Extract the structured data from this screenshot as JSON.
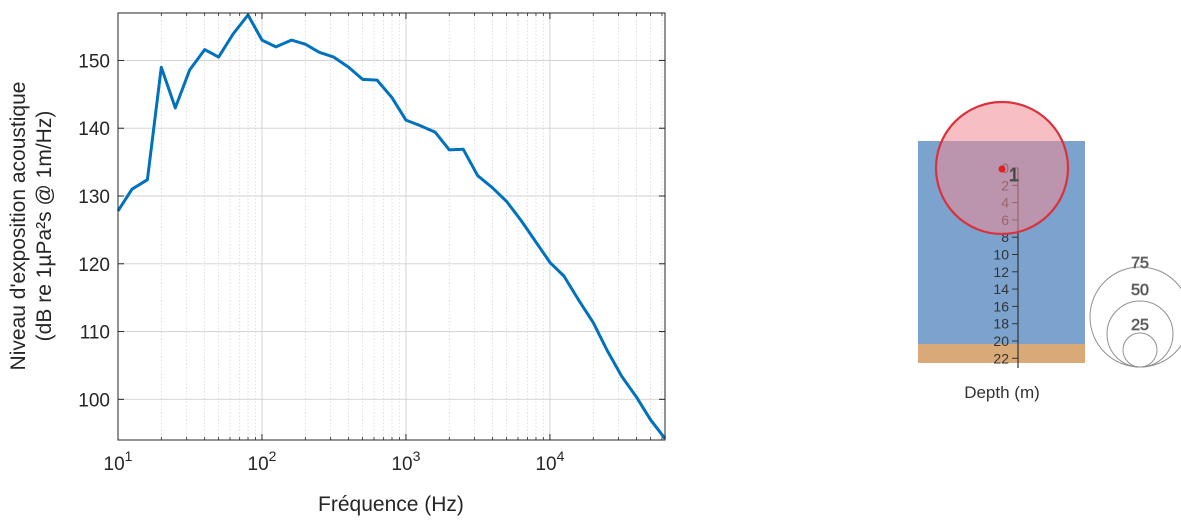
{
  "chart_data": {
    "type": "line",
    "xscale": "log",
    "xlim": [
      10,
      63000
    ],
    "ylim": [
      94,
      157
    ],
    "xticks": [
      10,
      100,
      1000,
      10000
    ],
    "xtick_labels": [
      {
        "base": "10",
        "exp": "1"
      },
      {
        "base": "10",
        "exp": "2"
      },
      {
        "base": "10",
        "exp": "3"
      },
      {
        "base": "10",
        "exp": "4"
      }
    ],
    "yticks": [
      100,
      110,
      120,
      130,
      140,
      150
    ],
    "ytick_labels": [
      "100",
      "110",
      "120",
      "130",
      "140",
      "150"
    ],
    "xlabel": "Fréquence (Hz)",
    "ylabel": [
      "Niveau d'exposition acoustique",
      "(dB re 1µPa²s @ 1m/Hz)"
    ],
    "grid": true,
    "minor_grid": true,
    "line_color": "#0072BD",
    "series": [
      {
        "x": [
          10,
          12.5,
          16,
          20,
          25,
          31.5,
          40,
          50,
          63,
          80,
          100,
          125,
          160,
          200,
          250,
          315,
          400,
          500,
          630,
          800,
          1000,
          1250,
          1600,
          2000,
          2500,
          3150,
          4000,
          5000,
          6300,
          8000,
          10000,
          12500,
          16000,
          20000,
          25000,
          31500,
          40000,
          50000,
          63000
        ],
        "y": [
          127.8,
          131.0,
          132.4,
          149.0,
          143.0,
          148.6,
          151.6,
          150.5,
          153.9,
          156.7,
          153.0,
          152.0,
          153.0,
          152.4,
          151.2,
          150.5,
          149.0,
          147.2,
          147.1,
          144.5,
          141.2,
          140.4,
          139.4,
          136.8,
          136.9,
          133.0,
          131.2,
          129.2,
          126.4,
          123.2,
          120.2,
          118.2,
          114.5,
          111.3,
          107.2,
          103.4,
          100.3,
          97.0,
          94.2
        ]
      }
    ]
  },
  "diagram": {
    "depth_ticks": [
      "0",
      "2",
      "4",
      "6",
      "8",
      "10",
      "12",
      "14",
      "16",
      "18",
      "20",
      "22"
    ],
    "depth_label": "Depth (m)",
    "source_number": "1",
    "range_rings": [
      "75",
      "50",
      "25"
    ],
    "colors": {
      "water": "#7BA3CE",
      "seabed": "#D9AA78",
      "circle_fill": "#F08A94",
      "circle_stroke": "#D9323C",
      "source_dot": "#E02020"
    }
  }
}
